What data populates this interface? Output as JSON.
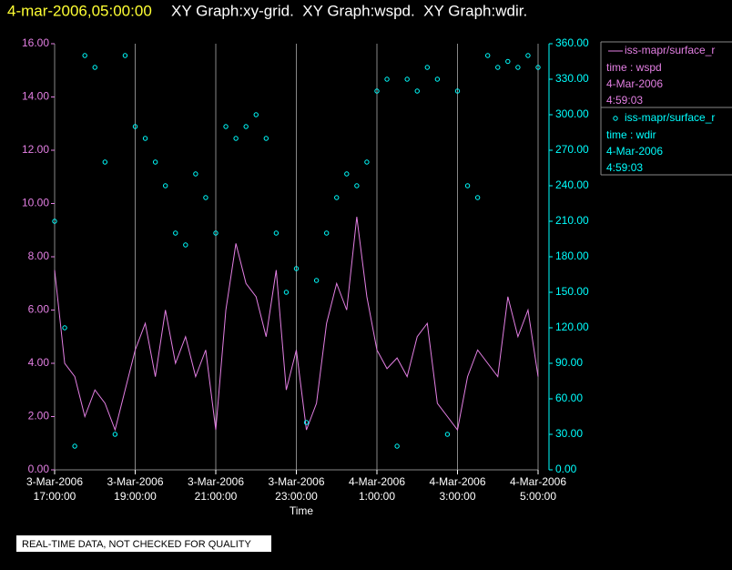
{
  "chart_data": {
    "type": "line",
    "title": "4-mar-2006,05:00:00",
    "subtitle": "XY Graph:xy-grid.  XY Graph:wspd.  XY Graph:wdir.",
    "x_label": "Time",
    "footer": "REAL-TIME DATA, NOT CHECKED FOR QUALITY",
    "x": [
      "2006-03-03T17:00",
      "2006-03-03T17:15",
      "2006-03-03T17:30",
      "2006-03-03T17:45",
      "2006-03-03T18:00",
      "2006-03-03T18:15",
      "2006-03-03T18:30",
      "2006-03-03T18:45",
      "2006-03-03T19:00",
      "2006-03-03T19:15",
      "2006-03-03T19:30",
      "2006-03-03T19:45",
      "2006-03-03T20:00",
      "2006-03-03T20:15",
      "2006-03-03T20:30",
      "2006-03-03T20:45",
      "2006-03-03T21:00",
      "2006-03-03T21:15",
      "2006-03-03T21:30",
      "2006-03-03T21:45",
      "2006-03-03T22:00",
      "2006-03-03T22:15",
      "2006-03-03T22:30",
      "2006-03-03T22:45",
      "2006-03-03T23:00",
      "2006-03-03T23:15",
      "2006-03-03T23:30",
      "2006-03-03T23:45",
      "2006-03-04T00:00",
      "2006-03-04T00:15",
      "2006-03-04T00:30",
      "2006-03-04T00:45",
      "2006-03-04T01:00",
      "2006-03-04T01:15",
      "2006-03-04T01:30",
      "2006-03-04T01:45",
      "2006-03-04T02:00",
      "2006-03-04T02:15",
      "2006-03-04T02:30",
      "2006-03-04T02:45",
      "2006-03-04T03:00",
      "2006-03-04T03:15",
      "2006-03-04T03:30",
      "2006-03-04T03:45",
      "2006-03-04T04:00",
      "2006-03-04T04:15",
      "2006-03-04T04:30",
      "2006-03-04T04:45",
      "2006-03-04T05:00"
    ],
    "xlim": [
      "2006-03-03T17:00",
      "2006-03-04T05:00"
    ],
    "xticks": [
      {
        "value": "2006-03-03T17:00",
        "label": [
          "3-Mar-2006",
          "17:00:00"
        ]
      },
      {
        "value": "2006-03-03T19:00",
        "label": [
          "3-Mar-2006",
          "19:00:00"
        ]
      },
      {
        "value": "2006-03-03T21:00",
        "label": [
          "3-Mar-2006",
          "21:00:00"
        ]
      },
      {
        "value": "2006-03-03T23:00",
        "label": [
          "3-Mar-2006",
          "23:00:00"
        ]
      },
      {
        "value": "2006-03-04T01:00",
        "label": [
          "4-Mar-2006",
          "1:00:00"
        ]
      },
      {
        "value": "2006-03-04T03:00",
        "label": [
          "4-Mar-2006",
          "3:00:00"
        ]
      },
      {
        "value": "2006-03-04T05:00",
        "label": [
          "4-Mar-2006",
          "5:00:00"
        ]
      }
    ],
    "ylim": [
      0,
      16
    ],
    "yticks": [
      {
        "value": 0,
        "label": "0.00"
      },
      {
        "value": 2,
        "label": "2.00"
      },
      {
        "value": 4,
        "label": "4.00"
      },
      {
        "value": 6,
        "label": "6.00"
      },
      {
        "value": 8,
        "label": "8.00"
      },
      {
        "value": 10,
        "label": "10.00"
      },
      {
        "value": 12,
        "label": "12.00"
      },
      {
        "value": 14,
        "label": "14.00"
      },
      {
        "value": 16,
        "label": "16.00"
      }
    ],
    "y2lim": [
      0,
      360
    ],
    "y2ticks": [
      {
        "value": 0,
        "label": "0.00"
      },
      {
        "value": 30,
        "label": "30.00"
      },
      {
        "value": 60,
        "label": "60.00"
      },
      {
        "value": 90,
        "label": "90.00"
      },
      {
        "value": 120,
        "label": "120.00"
      },
      {
        "value": 150,
        "label": "150.00"
      },
      {
        "value": 180,
        "label": "180.00"
      },
      {
        "value": 210,
        "label": "210.00"
      },
      {
        "value": 240,
        "label": "240.00"
      },
      {
        "value": 270,
        "label": "270.00"
      },
      {
        "value": 300,
        "label": "300.00"
      },
      {
        "value": 330,
        "label": "330.00"
      },
      {
        "value": 360,
        "label": "360.00"
      }
    ],
    "grid": "x",
    "series": [
      {
        "name": "iss-mapr/surface_r",
        "legend_lines": [
          "time : wspd",
          "4-Mar-2006",
          "4:59:03"
        ],
        "style": "line",
        "color": "#e37fe3",
        "axis": "y",
        "values": [
          7.5,
          4.0,
          3.5,
          2.0,
          3.0,
          2.5,
          1.5,
          3.0,
          4.5,
          5.5,
          3.5,
          6.0,
          4.0,
          5.0,
          3.5,
          4.5,
          1.5,
          6.0,
          8.5,
          7.0,
          6.5,
          5.0,
          7.5,
          3.0,
          4.5,
          1.5,
          2.5,
          5.5,
          7.0,
          6.0,
          9.5,
          6.5,
          4.5,
          3.8,
          4.2,
          3.5,
          5.0,
          5.5,
          2.5,
          2.0,
          1.5,
          3.5,
          4.5,
          4.0,
          3.5,
          6.5,
          5.0,
          6.0,
          3.5
        ]
      },
      {
        "name": "iss-mapr/surface_r",
        "legend_lines": [
          "time : wdir",
          "4-Mar-2006",
          "4:59:03"
        ],
        "style": "marker",
        "color": "#00ffff",
        "axis": "y2",
        "values": [
          210,
          120,
          20,
          350,
          340,
          260,
          30,
          350,
          290,
          280,
          260,
          240,
          200,
          190,
          250,
          230,
          200,
          290,
          280,
          290,
          300,
          280,
          200,
          150,
          170,
          40,
          160,
          200,
          230,
          250,
          240,
          260,
          320,
          330,
          20,
          330,
          320,
          340,
          330,
          30,
          320,
          240,
          230,
          350,
          340,
          345,
          340,
          350,
          340
        ]
      }
    ]
  }
}
